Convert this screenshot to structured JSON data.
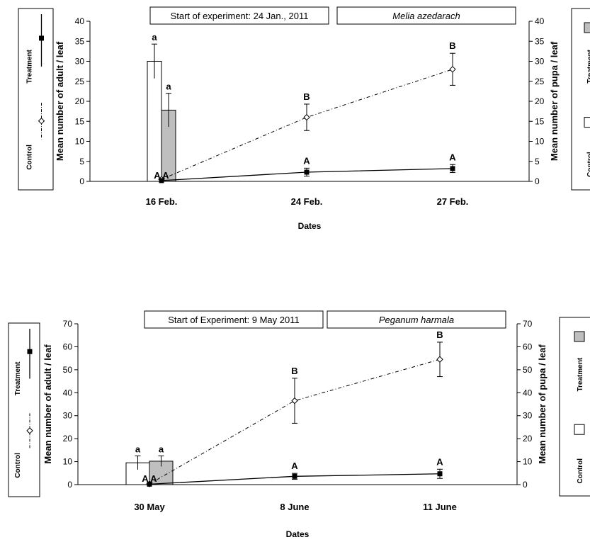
{
  "chart_data": [
    {
      "type": "bar+line",
      "header_note": "Start of experiment: 24 Jan., 2011",
      "header_species": "Melia azedarach",
      "xlabel": "Dates",
      "ylabel_left": "Mean number of adult / leaf",
      "ylabel_right": "Mean number of pupa / leaf",
      "categories": [
        "16 Feb.",
        "24 Feb.",
        "27 Feb."
      ],
      "y_left_lim": [
        0,
        40
      ],
      "y_right_lim": [
        0,
        40
      ],
      "ticks": [
        0,
        5,
        10,
        15,
        20,
        25,
        30,
        35,
        40
      ],
      "left_legend": {
        "control": "Control",
        "treatment": "Treatment"
      },
      "right_legend": {
        "control": "Control",
        "treatment": "Treatment"
      },
      "bar_series": [
        {
          "name": "Control",
          "color": "#ffffff",
          "values": [
            30,
            null,
            null
          ],
          "err": [
            4.3,
            null,
            null
          ],
          "labels": [
            "a",
            "",
            ""
          ]
        },
        {
          "name": "Treatment",
          "color": "#bfbfbf",
          "values": [
            17.8,
            null,
            null
          ],
          "err": [
            4.2,
            null,
            null
          ],
          "labels": [
            "a",
            "",
            ""
          ]
        }
      ],
      "line_series": [
        {
          "name": "Control",
          "style": "dashed",
          "marker": "open-diamond",
          "values": [
            0.5,
            16,
            28
          ],
          "err": [
            0,
            3.3,
            4
          ],
          "labels": [
            "A",
            "B",
            "B"
          ]
        },
        {
          "name": "Treatment",
          "style": "solid",
          "marker": "filled-square",
          "values": [
            0.2,
            2.3,
            3.2
          ],
          "err": [
            0,
            1,
            1
          ],
          "labels": [
            "A",
            "A",
            "A"
          ]
        }
      ]
    },
    {
      "type": "bar+line",
      "header_note": "Start of Experiment: 9 May 2011",
      "header_species": "Peganum harmala",
      "xlabel": "Dates",
      "ylabel_left": "Mean number of adult / leaf",
      "ylabel_right": "Mean number of pupa / leaf",
      "categories": [
        "30 May",
        "8 June",
        "11 June"
      ],
      "y_left_lim": [
        0,
        70
      ],
      "y_right_lim": [
        0,
        70
      ],
      "ticks": [
        0,
        10,
        20,
        30,
        40,
        50,
        60,
        70
      ],
      "left_legend": {
        "control": "Control",
        "treatment": "Treatment"
      },
      "right_legend": {
        "control": "Control",
        "treatment": "Treatment"
      },
      "bar_series": [
        {
          "name": "Control",
          "color": "#ffffff",
          "values": [
            9.5,
            null,
            null
          ],
          "err": [
            3,
            null,
            null
          ],
          "labels": [
            "a",
            "",
            ""
          ]
        },
        {
          "name": "Treatment",
          "color": "#bfbfbf",
          "values": [
            10.2,
            null,
            null
          ],
          "err": [
            2.3,
            null,
            null
          ],
          "labels": [
            "a",
            "",
            ""
          ]
        }
      ],
      "line_series": [
        {
          "name": "Control",
          "style": "dashed",
          "marker": "open-diamond",
          "values": [
            0.3,
            36.5,
            54.5
          ],
          "err": [
            0,
            9.8,
            7.5
          ],
          "labels": [
            "A",
            "B",
            "B"
          ]
        },
        {
          "name": "Treatment",
          "style": "solid",
          "marker": "filled-square",
          "values": [
            0.2,
            3.6,
            4.7
          ],
          "err": [
            0,
            1.3,
            2
          ],
          "labels": [
            "A",
            "A",
            "A"
          ]
        }
      ]
    }
  ]
}
